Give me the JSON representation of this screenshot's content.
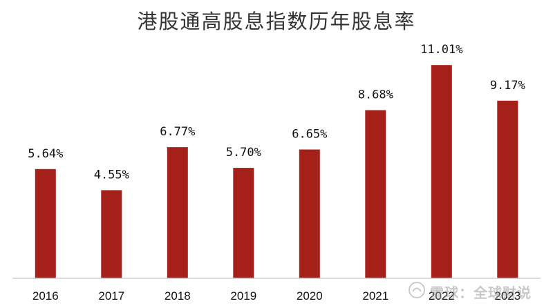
{
  "chart_data": {
    "type": "bar",
    "title": "港股通高股息指数历年股息率",
    "categories": [
      "2016",
      "2017",
      "2018",
      "2019",
      "2020",
      "2021",
      "2022",
      "2023"
    ],
    "values": [
      5.64,
      4.55,
      6.77,
      5.7,
      6.65,
      8.68,
      11.01,
      9.17
    ],
    "data_labels": [
      "5.64%",
      "4.55%",
      "6.77%",
      "5.70%",
      "6.65%",
      "8.68%",
      "11.01%",
      "9.17%"
    ],
    "ylim": [
      0,
      11.8
    ],
    "grid": false,
    "bar_color": "#A52019",
    "xlabel": "",
    "ylabel": ""
  },
  "watermark": {
    "text": "雪球：全球财说",
    "icon": "snowball-logo-icon"
  }
}
